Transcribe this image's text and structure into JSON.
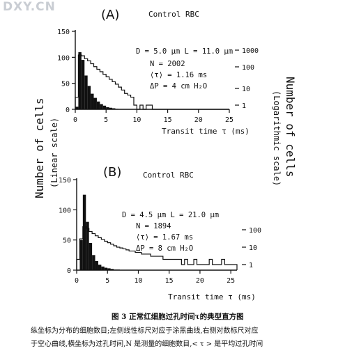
{
  "watermark": "DXY.CN",
  "shared_labels": {
    "left_axis": "Number of cells",
    "left_axis_sub": "(Linear scale)",
    "right_axis": "Number of cells",
    "right_axis_sub": "(Logarithmic scale)"
  },
  "caption": {
    "title": "图 3   正常红细胞过孔时间τ的典型直方图",
    "line1": "纵坐标为分布的细胞数目;左侧线性标尺对应于涂黑曲线,右侧对数标尺对应",
    "line2": "于空心曲线,横坐标为过孔时间,N 是测量的细胞数目,< τ > 是平均过孔时间"
  },
  "chart_data": [
    {
      "type": "histogram",
      "panel": "(A)",
      "title": "Control RBC",
      "xlabel": "Transit time τ (ms)",
      "xlim": [
        0,
        25
      ],
      "x_ticks": [
        "0",
        "5",
        "10",
        "15",
        "20",
        "25"
      ],
      "ylim_left": [
        0,
        150
      ],
      "left_ticks": [
        "0",
        "50",
        "100",
        "150"
      ],
      "right_ticks": [
        "1",
        "10",
        "100",
        "1000"
      ],
      "annotations": [
        "D = 5.0 μm   L = 11.0 μm",
        "N = 2002",
        "⟨τ⟩ = 1.16 ms",
        "ΔP = 4 cm H₂O"
      ],
      "bin_width": 0.5,
      "series": [
        {
          "style": "filled",
          "scale": "linear",
          "values": [
            5,
            110,
            95,
            65,
            45,
            30,
            22,
            15,
            10,
            7,
            4,
            3,
            2,
            1
          ]
        },
        {
          "style": "outline",
          "scale": "log",
          "values": [
            3,
            1000,
            900,
            600,
            450,
            300,
            200,
            140,
            100,
            70,
            50,
            35,
            25,
            18,
            12,
            8,
            5,
            4,
            3,
            1,
            0,
            1,
            0,
            1,
            1,
            0,
            0,
            0,
            0,
            0,
            0,
            0,
            0,
            0,
            0,
            0,
            0,
            0,
            0,
            0,
            0,
            0,
            0,
            0,
            0,
            0,
            0,
            0,
            0,
            0
          ]
        }
      ]
    },
    {
      "type": "histogram",
      "panel": "(B)",
      "title": "Control RBC",
      "xlabel": "Transit time τ (ms)",
      "xlim": [
        0,
        26
      ],
      "x_ticks": [
        "0",
        "5",
        "10",
        "15",
        "20",
        "25"
      ],
      "ylim_left": [
        0,
        150
      ],
      "left_ticks": [
        "0",
        "50",
        "100",
        "150"
      ],
      "right_ticks": [
        "1",
        "10",
        "100"
      ],
      "annotations": [
        "D = 4.5 μm   L = 21.0 μm",
        "N = 1894",
        "⟨τ⟩ = 1.67 ms",
        "ΔP = 8 cm H₂O"
      ],
      "bin_width": 0.5,
      "series": [
        {
          "style": "filled",
          "scale": "linear",
          "values": [
            0,
            50,
            125,
            80,
            45,
            25,
            15,
            9,
            6,
            4,
            3,
            2,
            1,
            1
          ]
        },
        {
          "style": "outline",
          "scale": "log",
          "values": [
            2,
            30,
            150,
            120,
            80,
            60,
            45,
            35,
            28,
            22,
            18,
            15,
            12,
            10,
            9,
            8,
            7,
            6,
            6,
            5,
            5,
            4,
            4,
            4,
            3,
            3,
            3,
            3,
            2,
            2,
            2,
            2,
            2,
            2,
            1,
            2,
            1,
            1,
            2,
            1,
            1,
            1,
            1,
            2,
            1,
            1,
            1,
            2,
            1,
            1,
            1,
            1
          ]
        }
      ]
    }
  ]
}
